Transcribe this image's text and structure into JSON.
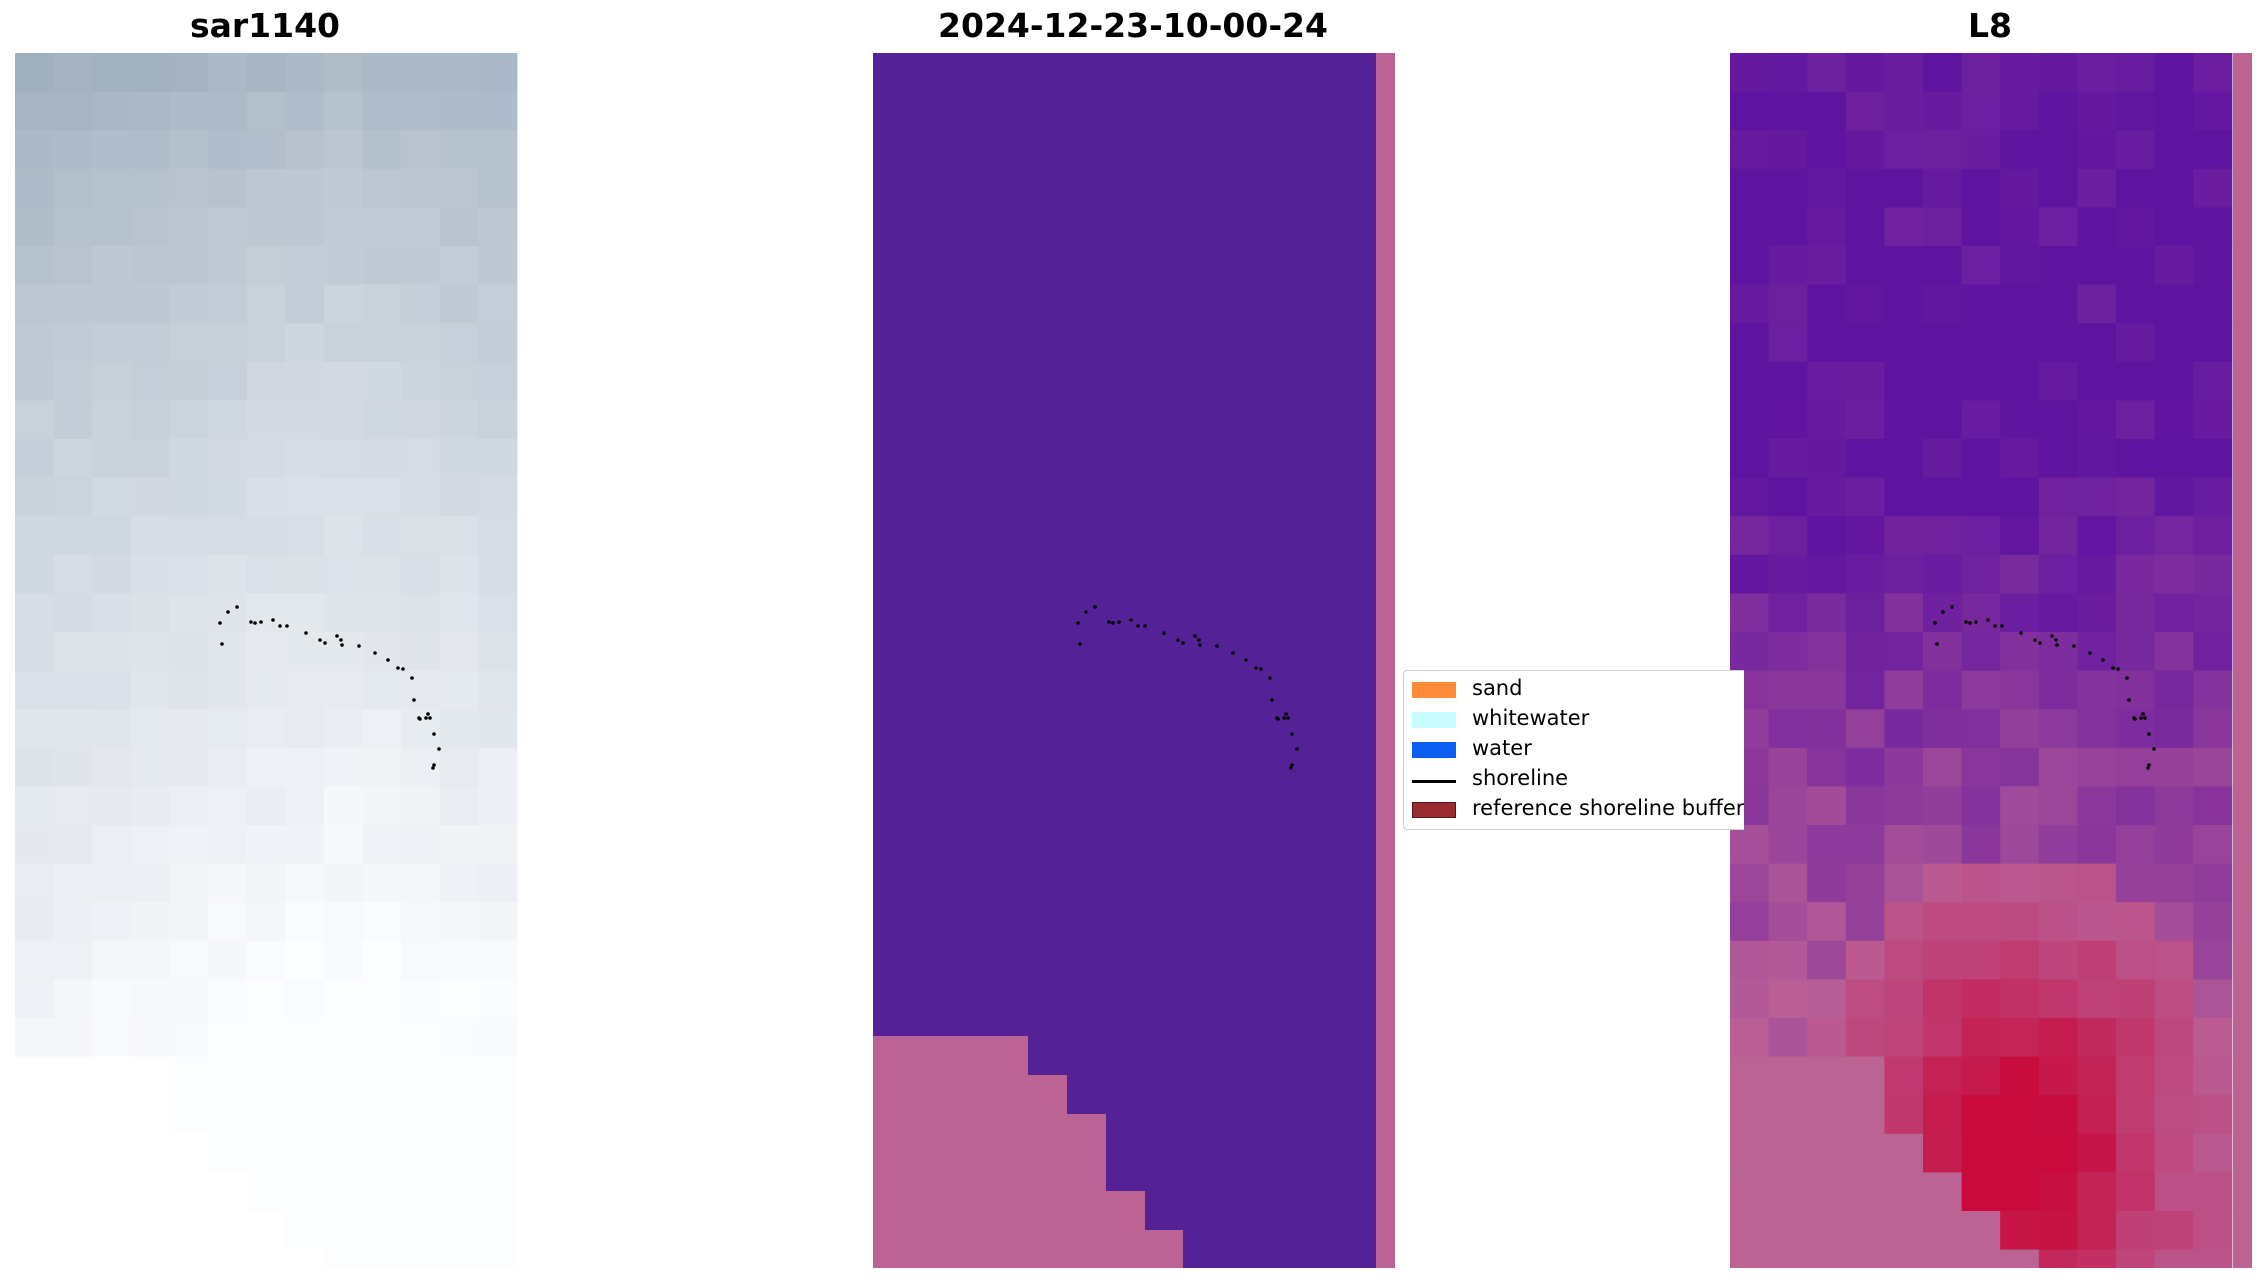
{
  "panels": [
    {
      "title": "sar1140"
    },
    {
      "title": "2024-12-23-10-00-24"
    },
    {
      "title": "L8"
    }
  ],
  "legend": {
    "items": [
      {
        "label": "sand",
        "color": "#fe8a3a"
      },
      {
        "label": "whitewater",
        "color": "#c8fcfc"
      },
      {
        "label": "water",
        "color": "#0a5ff2"
      },
      {
        "label": "shoreline",
        "color": "#000000"
      },
      {
        "label": "reference shoreline buffer",
        "color": "#9a2b33"
      }
    ]
  },
  "colors": {
    "classified_background": "#542197",
    "nodata_pink": "#bb6494",
    "shoreline_points": "#000000"
  }
}
